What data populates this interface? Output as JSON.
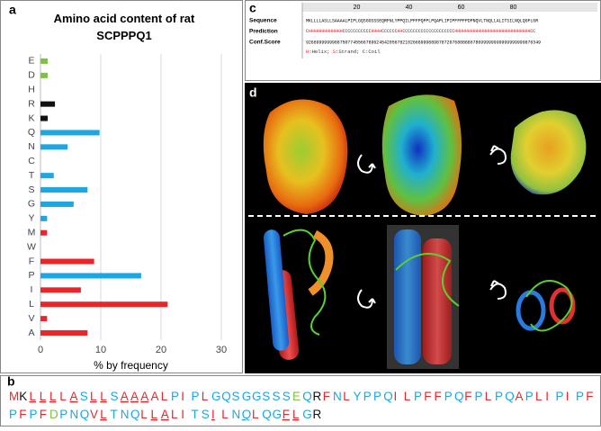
{
  "chart_data": {
    "type": "bar",
    "orientation": "horizontal",
    "title": "Amino acid content of rat SCPPPQ1",
    "xlabel": "% by frequency",
    "categories": [
      "E",
      "D",
      "H",
      "R",
      "K",
      "Q",
      "N",
      "C",
      "T",
      "S",
      "G",
      "Y",
      "M",
      "W",
      "F",
      "P",
      "I",
      "L",
      "V",
      "A"
    ],
    "values": [
      1.2,
      1.2,
      0,
      2.4,
      1.2,
      9.8,
      4.5,
      0,
      2.2,
      7.8,
      5.5,
      1.1,
      1.1,
      0,
      8.9,
      16.7,
      6.7,
      21.1,
      1.1,
      7.8
    ],
    "colors": [
      "#7dc242",
      "#7dc242",
      "#111111",
      "#111111",
      "#111111",
      "#1ba6e4",
      "#1ba6e4",
      "#1ba6e4",
      "#1ba6e4",
      "#1ba6e4",
      "#1ba6e4",
      "#1ba6e4",
      "#e8262a",
      "#e8262a",
      "#e8262a",
      "#1ba6e4",
      "#e8262a",
      "#e8262a",
      "#e8262a",
      "#e8262a"
    ],
    "xlim": [
      0,
      30
    ],
    "xticks": [
      0,
      10,
      20,
      30
    ],
    "grid": true
  },
  "panel_labels": {
    "a": "a",
    "b": "b",
    "c": "c",
    "d": "d"
  },
  "sequence_panel": {
    "lines": [
      "MKLLLLASLLSAAAALPIPLGQSGGSSSEQRFNLYPPQILPFFPQFPLPQAPLIPIPF",
      "PFPFDPNQVLTNQLLALITSILNQLQGFLGR"
    ],
    "underlined": [
      [
        2,
        3,
        4,
        6,
        8,
        9,
        11,
        12,
        13
      ],
      [
        9,
        14,
        15,
        20,
        23,
        27,
        28
      ]
    ],
    "residue_colors": {
      "M": "#e8262a",
      "L": "#e8262a",
      "A": "#e8262a",
      "I": "#e8262a",
      "F": "#e8262a",
      "V": "#e8262a",
      "W": "#e8262a",
      "P": "#1ba6e4",
      "Q": "#1ba6e4",
      "S": "#1ba6e4",
      "G": "#1ba6e4",
      "N": "#1ba6e4",
      "T": "#1ba6e4",
      "Y": "#1ba6e4",
      "C": "#1ba6e4",
      "E": "#7dc242",
      "D": "#7dc242",
      "K": "#111111",
      "R": "#111111",
      "H": "#111111"
    }
  },
  "psipred": {
    "ruler": [
      20,
      40,
      60,
      80
    ],
    "row_labels": [
      "Sequence",
      "Prediction",
      "Conf.Score"
    ],
    "sequence": "MKLLLLASLLSAAAALPIPLGQSGGSSSEQRFNLYPPQILPFFPQFPLPQAPLIPIPFFPFPDPNQVLTNQLLALITSILNQLQGFLGR",
    "prediction": "CHHHHHHHHHHHHHCCCCCCCCCCCHHHHCCCCCCHHCCCCCCCCCCCCCCCCCCCCHHHHHHHHHHHHHHHHHHHHHHHHHHHHHCC",
    "conf_score": "926899999998875077455667896245420567821026689998898787267688888678699999999999999999876349",
    "legend": "H:Helix; S:Strand; C:Coil"
  }
}
